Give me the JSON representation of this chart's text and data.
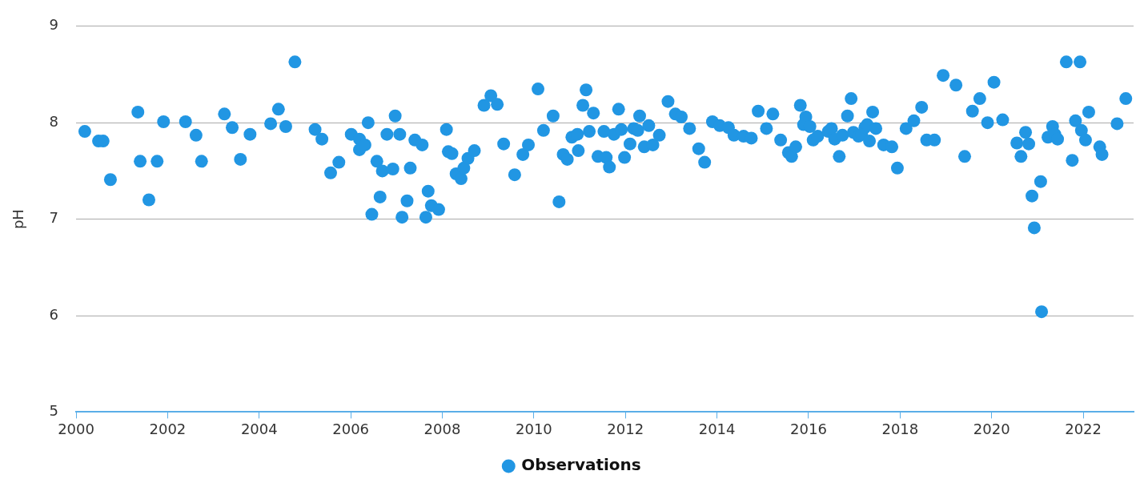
{
  "chart_data": {
    "type": "scatter",
    "ylabel": "pH",
    "xlim": [
      2000,
      2023.1
    ],
    "xticks": [
      2000,
      2002,
      2004,
      2006,
      2008,
      2010,
      2012,
      2014,
      2016,
      2018,
      2020,
      2022
    ],
    "ylim": [
      5,
      9
    ],
    "yticks": [
      5,
      6,
      7,
      8,
      9
    ],
    "grid": "y",
    "legend": "bottom",
    "marker": "circle",
    "series": [
      {
        "name": "Observations",
        "color": "#2196e3",
        "x": [
          2000.19,
          2000.49,
          2000.59,
          2000.75,
          2001.35,
          2001.4,
          2001.59,
          2001.77,
          2001.91,
          2002.39,
          2002.62,
          2002.74,
          2003.24,
          2003.41,
          2003.59,
          2003.8,
          2004.25,
          2004.42,
          2004.58,
          2004.78,
          2005.22,
          2005.37,
          2005.56,
          2005.74,
          2006.01,
          2006.19,
          2006.19,
          2006.31,
          2006.38,
          2006.46,
          2006.57,
          2006.64,
          2006.69,
          2006.79,
          2006.92,
          2006.97,
          2007.07,
          2007.12,
          2007.23,
          2007.3,
          2007.4,
          2007.56,
          2007.64,
          2007.69,
          2007.76,
          2007.92,
          2008.09,
          2008.13,
          2008.21,
          2008.3,
          2008.41,
          2008.47,
          2008.56,
          2008.7,
          2008.91,
          2009.06,
          2009.2,
          2009.34,
          2009.58,
          2009.76,
          2009.88,
          2010.09,
          2010.21,
          2010.42,
          2010.55,
          2010.64,
          2010.73,
          2010.83,
          2010.95,
          2010.97,
          2011.07,
          2011.14,
          2011.21,
          2011.3,
          2011.4,
          2011.53,
          2011.58,
          2011.65,
          2011.75,
          2011.85,
          2011.91,
          2011.98,
          2012.1,
          2012.18,
          2012.27,
          2012.31,
          2012.41,
          2012.51,
          2012.6,
          2012.74,
          2012.93,
          2013.09,
          2013.22,
          2013.4,
          2013.6,
          2013.73,
          2013.9,
          2014.06,
          2014.25,
          2014.37,
          2014.58,
          2014.75,
          2014.9,
          2015.08,
          2015.22,
          2015.39,
          2015.56,
          2015.63,
          2015.72,
          2015.82,
          2015.89,
          2015.94,
          2016.03,
          2016.1,
          2016.2,
          2016.43,
          2016.5,
          2016.57,
          2016.67,
          2016.74,
          2016.85,
          2016.93,
          2016.98,
          2017.09,
          2017.16,
          2017.23,
          2017.28,
          2017.33,
          2017.4,
          2017.47,
          2017.64,
          2017.82,
          2017.94,
          2018.13,
          2018.3,
          2018.47,
          2018.58,
          2018.75,
          2018.94,
          2019.22,
          2019.41,
          2019.58,
          2019.74,
          2019.91,
          2020.05,
          2020.24,
          2020.55,
          2020.64,
          2020.74,
          2020.81,
          2020.88,
          2020.93,
          2021.07,
          2021.09,
          2021.23,
          2021.33,
          2021.38,
          2021.44,
          2021.63,
          2021.76,
          2021.83,
          2021.93,
          2021.96,
          2022.05,
          2022.12,
          2022.36,
          2022.41,
          2022.74,
          2022.93
        ],
        "values": [
          7.91,
          7.81,
          7.81,
          7.41,
          8.11,
          7.6,
          7.2,
          7.6,
          8.01,
          8.01,
          7.87,
          7.6,
          8.09,
          7.95,
          7.62,
          7.88,
          7.99,
          8.14,
          7.96,
          8.63,
          7.93,
          7.83,
          7.48,
          7.59,
          7.88,
          7.83,
          7.72,
          7.77,
          8.0,
          7.05,
          7.6,
          7.23,
          7.5,
          7.88,
          7.52,
          8.07,
          7.88,
          7.02,
          7.19,
          7.53,
          7.82,
          7.77,
          7.02,
          7.29,
          7.14,
          7.1,
          7.93,
          7.7,
          7.68,
          7.47,
          7.42,
          7.53,
          7.63,
          7.71,
          8.18,
          8.28,
          8.19,
          7.78,
          7.46,
          7.67,
          7.77,
          8.35,
          7.92,
          8.07,
          7.18,
          7.67,
          7.62,
          7.85,
          7.88,
          7.71,
          8.18,
          8.34,
          7.91,
          8.1,
          7.65,
          7.91,
          7.64,
          7.54,
          7.88,
          8.14,
          7.93,
          7.64,
          7.78,
          7.94,
          7.92,
          8.07,
          7.75,
          7.97,
          7.77,
          7.87,
          8.22,
          8.09,
          8.06,
          7.94,
          7.73,
          7.59,
          8.01,
          7.97,
          7.95,
          7.87,
          7.86,
          7.84,
          8.12,
          7.94,
          8.09,
          7.82,
          7.69,
          7.65,
          7.75,
          8.18,
          7.98,
          8.06,
          7.96,
          7.82,
          7.86,
          7.91,
          7.94,
          7.83,
          7.65,
          7.87,
          8.07,
          8.25,
          7.9,
          7.86,
          7.88,
          7.95,
          7.98,
          7.81,
          8.11,
          7.94,
          7.77,
          7.75,
          7.53,
          7.94,
          8.02,
          8.16,
          7.82,
          7.82,
          8.49,
          8.39,
          7.65,
          8.12,
          8.25,
          8.0,
          8.42,
          8.03,
          7.79,
          7.65,
          7.9,
          7.78,
          7.24,
          6.91,
          7.39,
          6.04,
          7.85,
          7.96,
          7.88,
          7.83,
          8.63,
          7.61,
          8.02,
          8.63,
          7.92,
          7.82,
          8.11,
          7.75,
          7.67,
          7.99,
          8.25
        ]
      }
    ]
  }
}
